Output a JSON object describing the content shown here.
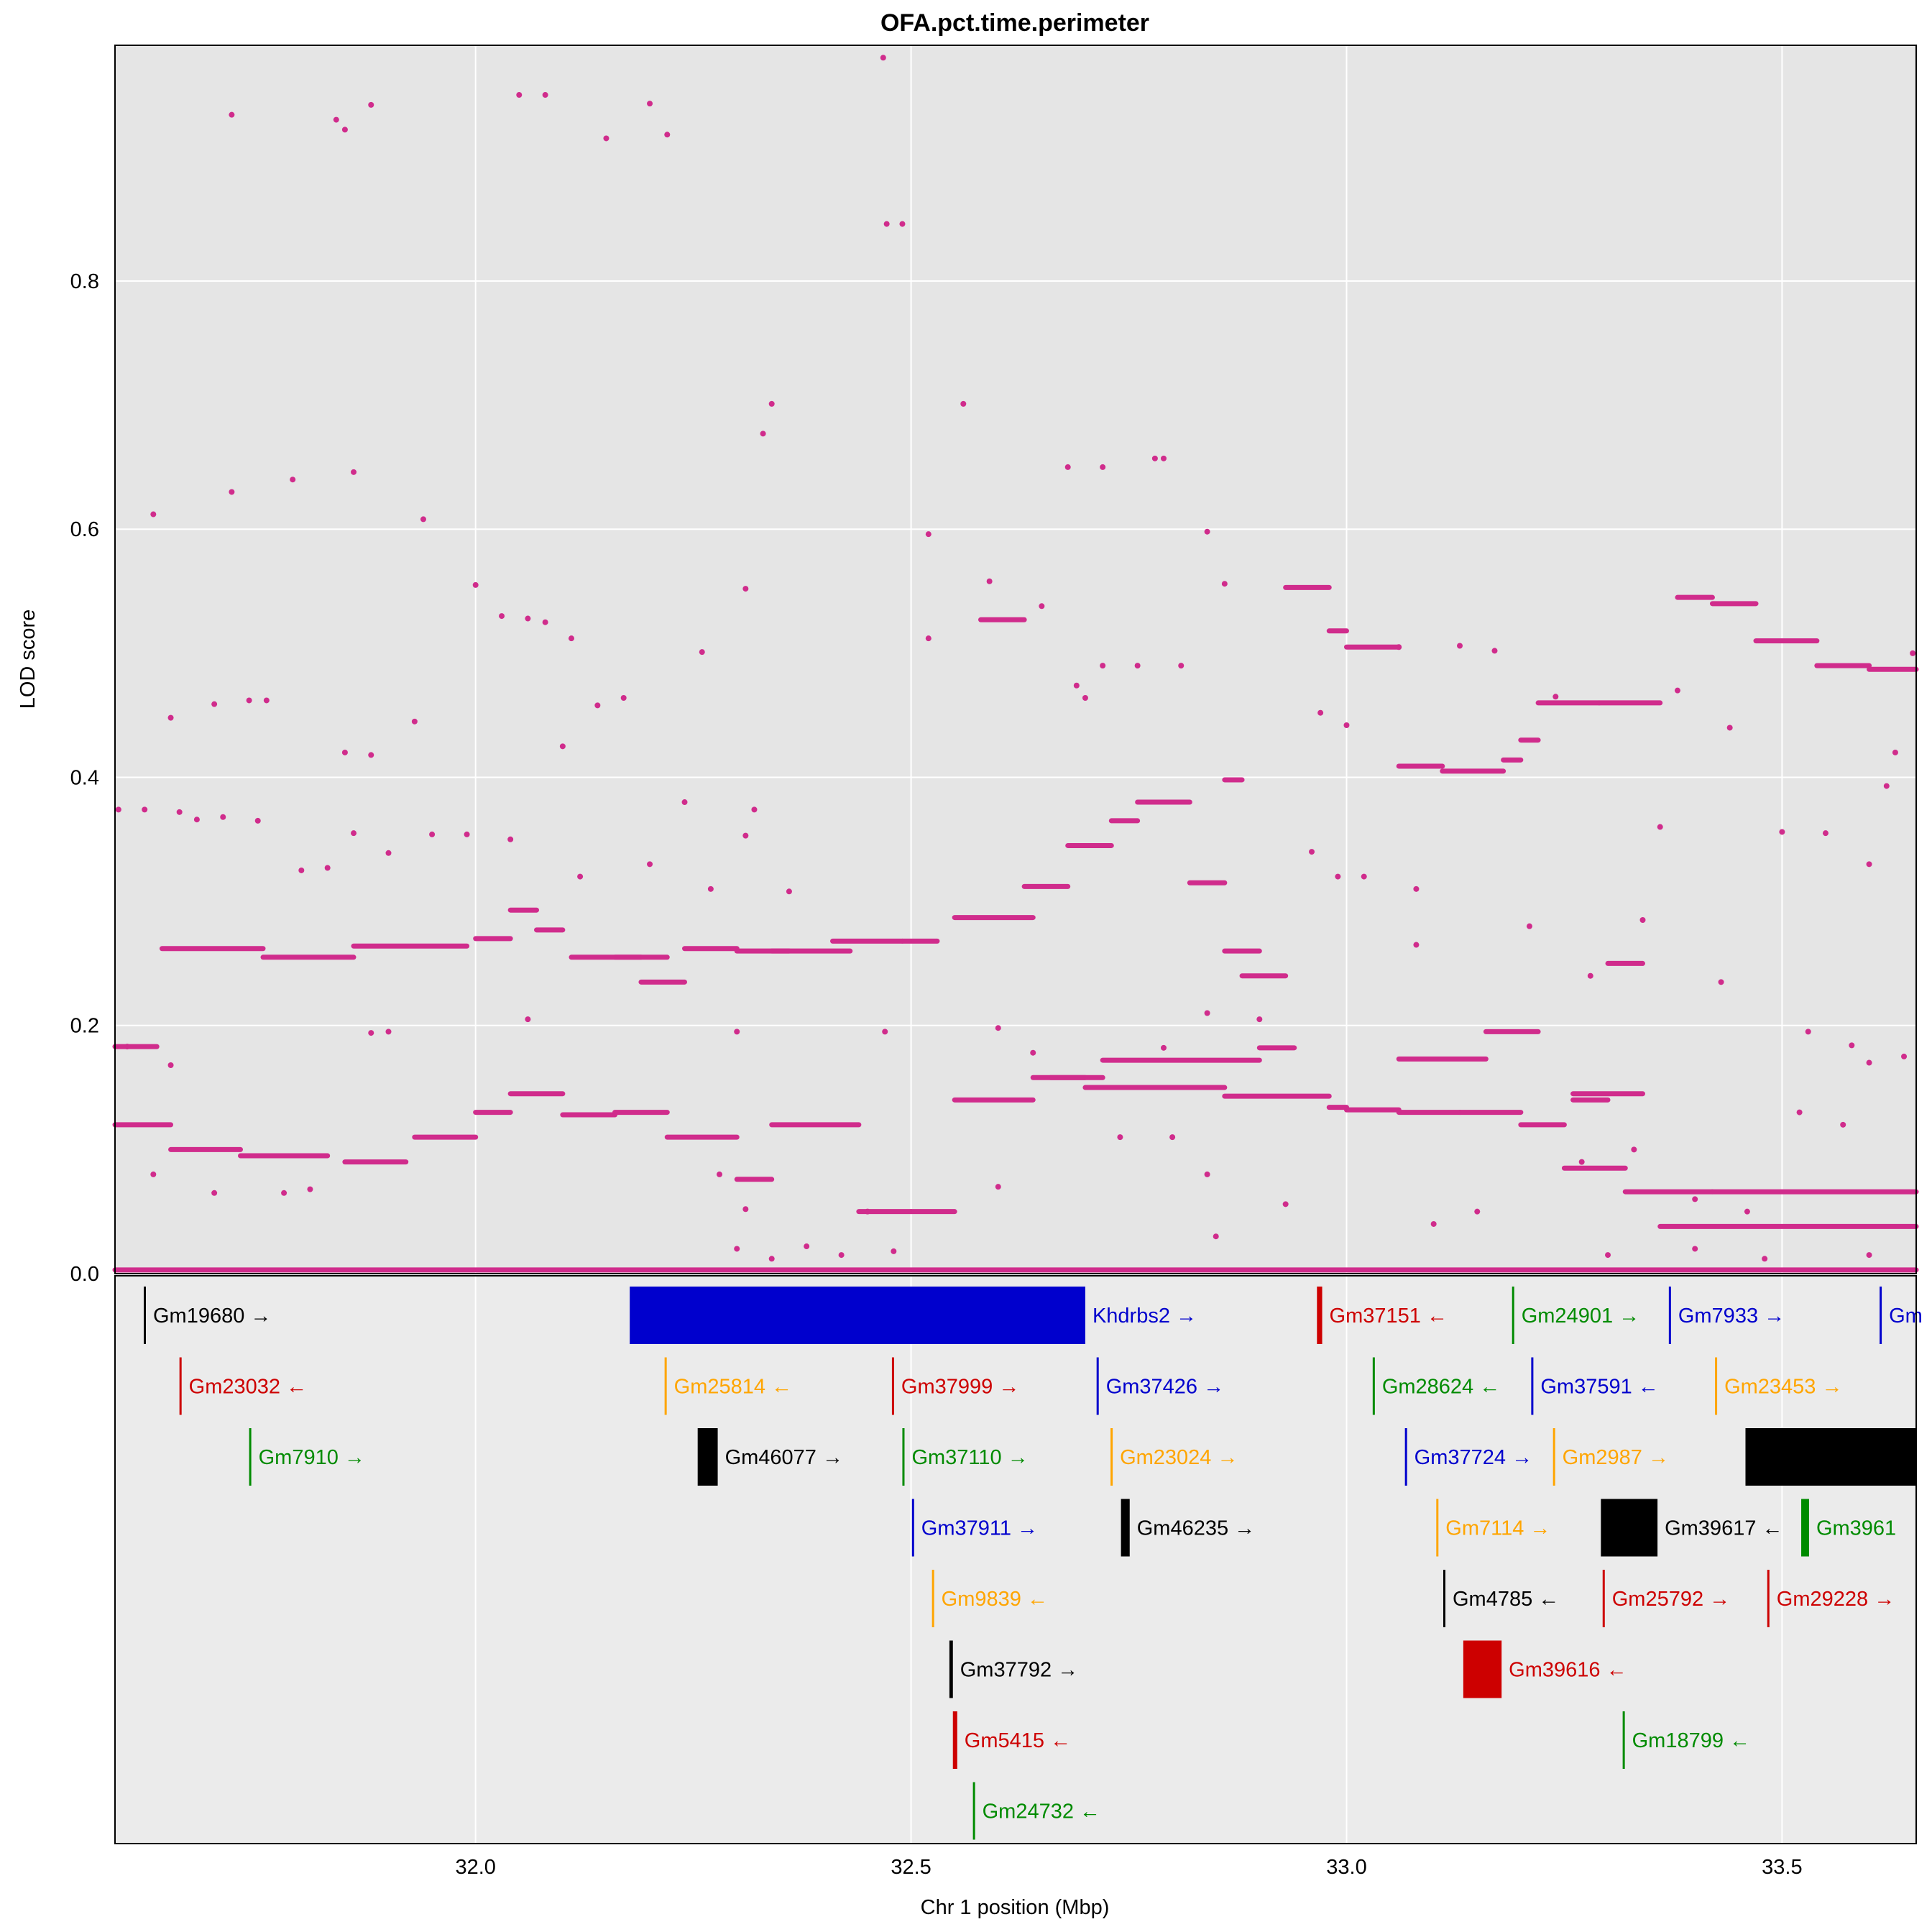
{
  "chart_data": {
    "type": "scatter",
    "title": "OFA.pct.time.perimeter",
    "xlabel": "Chr 1 position (Mbp)",
    "ylabel": "LOD score",
    "xlim": [
      31.586,
      33.654
    ],
    "ylim": [
      0.0,
      0.99
    ],
    "x_ticks": [
      {
        "value": 32.0,
        "label": "32.0"
      },
      {
        "value": 32.5,
        "label": "32.5"
      },
      {
        "value": 33.0,
        "label": "33.0"
      },
      {
        "value": 33.5,
        "label": "33.5"
      }
    ],
    "y_ticks": [
      {
        "value": 0.0,
        "label": "0.0"
      },
      {
        "value": 0.2,
        "label": "0.2"
      },
      {
        "value": 0.4,
        "label": "0.4"
      },
      {
        "value": 0.6,
        "label": "0.6"
      },
      {
        "value": 0.8,
        "label": "0.8"
      }
    ],
    "grid": true,
    "point_color": "#d02c8c",
    "panel_background": "#e5e5e5",
    "gene_panel_background": "#ebebeb",
    "scatter_points": [
      [
        31.72,
        0.934
      ],
      [
        31.84,
        0.93
      ],
      [
        31.85,
        0.922
      ],
      [
        31.88,
        0.942
      ],
      [
        32.05,
        0.95
      ],
      [
        32.08,
        0.95
      ],
      [
        32.15,
        0.915
      ],
      [
        32.2,
        0.943
      ],
      [
        32.22,
        0.918
      ],
      [
        32.468,
        0.98
      ],
      [
        32.472,
        0.846
      ],
      [
        32.49,
        0.846
      ],
      [
        32.34,
        0.701
      ],
      [
        32.33,
        0.677
      ],
      [
        32.56,
        0.701
      ],
      [
        31.63,
        0.612
      ],
      [
        31.72,
        0.63
      ],
      [
        31.79,
        0.64
      ],
      [
        31.86,
        0.646
      ],
      [
        31.94,
        0.608
      ],
      [
        32.31,
        0.552
      ],
      [
        32.52,
        0.596
      ],
      [
        32.68,
        0.65
      ],
      [
        32.72,
        0.65
      ],
      [
        32.78,
        0.657
      ],
      [
        32.79,
        0.657
      ],
      [
        32.84,
        0.598
      ],
      [
        32.86,
        0.556
      ],
      [
        32.0,
        0.555
      ],
      [
        32.03,
        0.53
      ],
      [
        32.06,
        0.528
      ],
      [
        32.08,
        0.525
      ],
      [
        32.11,
        0.512
      ],
      [
        32.26,
        0.501
      ],
      [
        32.52,
        0.512
      ],
      [
        32.59,
        0.558
      ],
      [
        32.65,
        0.538
      ],
      [
        31.65,
        0.448
      ],
      [
        31.7,
        0.459
      ],
      [
        31.74,
        0.462
      ],
      [
        31.76,
        0.462
      ],
      [
        31.85,
        0.42
      ],
      [
        31.88,
        0.418
      ],
      [
        31.93,
        0.445
      ],
      [
        32.1,
        0.425
      ],
      [
        32.14,
        0.458
      ],
      [
        32.17,
        0.464
      ],
      [
        32.24,
        0.38
      ],
      [
        32.32,
        0.374
      ],
      [
        32.69,
        0.474
      ],
      [
        32.7,
        0.464
      ],
      [
        32.72,
        0.49
      ],
      [
        32.76,
        0.49
      ],
      [
        32.81,
        0.49
      ],
      [
        32.97,
        0.452
      ],
      [
        33.0,
        0.442
      ],
      [
        33.06,
        0.505
      ],
      [
        33.13,
        0.506
      ],
      [
        33.17,
        0.502
      ],
      [
        33.24,
        0.465
      ],
      [
        33.38,
        0.47
      ],
      [
        33.44,
        0.44
      ],
      [
        33.62,
        0.393
      ],
      [
        33.63,
        0.42
      ],
      [
        33.65,
        0.5
      ],
      [
        31.59,
        0.374
      ],
      [
        31.62,
        0.374
      ],
      [
        31.66,
        0.372
      ],
      [
        31.68,
        0.366
      ],
      [
        31.71,
        0.368
      ],
      [
        31.75,
        0.365
      ],
      [
        31.8,
        0.325
      ],
      [
        31.83,
        0.327
      ],
      [
        31.86,
        0.355
      ],
      [
        31.9,
        0.339
      ],
      [
        31.95,
        0.354
      ],
      [
        31.99,
        0.354
      ],
      [
        32.04,
        0.35
      ],
      [
        32.12,
        0.32
      ],
      [
        32.2,
        0.33
      ],
      [
        32.27,
        0.31
      ],
      [
        32.31,
        0.353
      ],
      [
        32.36,
        0.308
      ],
      [
        32.96,
        0.34
      ],
      [
        32.99,
        0.32
      ],
      [
        33.02,
        0.32
      ],
      [
        33.08,
        0.31
      ],
      [
        33.21,
        0.28
      ],
      [
        33.36,
        0.36
      ],
      [
        33.5,
        0.356
      ],
      [
        33.55,
        0.355
      ],
      [
        33.6,
        0.33
      ],
      [
        31.6,
        0.183
      ],
      [
        31.65,
        0.168
      ],
      [
        31.88,
        0.194
      ],
      [
        31.9,
        0.195
      ],
      [
        32.06,
        0.205
      ],
      [
        32.3,
        0.195
      ],
      [
        32.47,
        0.195
      ],
      [
        32.6,
        0.198
      ],
      [
        32.64,
        0.178
      ],
      [
        32.79,
        0.182
      ],
      [
        32.84,
        0.21
      ],
      [
        32.9,
        0.205
      ],
      [
        33.08,
        0.265
      ],
      [
        33.28,
        0.24
      ],
      [
        33.34,
        0.285
      ],
      [
        33.43,
        0.235
      ],
      [
        33.53,
        0.195
      ],
      [
        33.58,
        0.184
      ],
      [
        33.6,
        0.17
      ],
      [
        33.64,
        0.175
      ],
      [
        31.63,
        0.08
      ],
      [
        31.7,
        0.065
      ],
      [
        31.78,
        0.065
      ],
      [
        31.81,
        0.068
      ],
      [
        32.28,
        0.08
      ],
      [
        32.31,
        0.052
      ],
      [
        32.45,
        0.05
      ],
      [
        32.6,
        0.07
      ],
      [
        32.74,
        0.11
      ],
      [
        32.8,
        0.11
      ],
      [
        32.84,
        0.08
      ],
      [
        32.93,
        0.056
      ],
      [
        33.1,
        0.04
      ],
      [
        33.15,
        0.05
      ],
      [
        33.27,
        0.09
      ],
      [
        33.33,
        0.1
      ],
      [
        33.4,
        0.06
      ],
      [
        33.46,
        0.05
      ],
      [
        33.52,
        0.13
      ],
      [
        33.57,
        0.12
      ],
      [
        32.3,
        0.02
      ],
      [
        32.34,
        0.012
      ],
      [
        32.38,
        0.022
      ],
      [
        32.42,
        0.015
      ],
      [
        32.48,
        0.018
      ],
      [
        32.85,
        0.03
      ],
      [
        33.3,
        0.015
      ],
      [
        33.4,
        0.02
      ],
      [
        33.48,
        0.012
      ],
      [
        33.6,
        0.015
      ]
    ],
    "scatter_segments": [
      [
        31.586,
        31.634,
        0.183
      ],
      [
        31.64,
        31.756,
        0.262
      ],
      [
        31.756,
        31.86,
        0.255
      ],
      [
        31.86,
        31.99,
        0.264
      ],
      [
        32.0,
        32.04,
        0.27
      ],
      [
        32.04,
        32.07,
        0.293
      ],
      [
        32.07,
        32.1,
        0.277
      ],
      [
        32.11,
        32.19,
        0.255
      ],
      [
        32.19,
        32.24,
        0.235
      ],
      [
        32.24,
        32.3,
        0.262
      ],
      [
        32.3,
        32.36,
        0.26
      ],
      [
        32.41,
        32.49,
        0.268
      ],
      [
        32.49,
        32.53,
        0.268
      ],
      [
        32.55,
        32.64,
        0.287
      ],
      [
        32.63,
        32.68,
        0.312
      ],
      [
        32.68,
        32.73,
        0.345
      ],
      [
        32.73,
        32.76,
        0.365
      ],
      [
        32.76,
        32.82,
        0.38
      ],
      [
        32.82,
        32.86,
        0.315
      ],
      [
        32.86,
        32.88,
        0.398
      ],
      [
        32.93,
        32.98,
        0.553
      ],
      [
        32.98,
        33.0,
        0.518
      ],
      [
        33.0,
        33.06,
        0.505
      ],
      [
        33.06,
        33.11,
        0.409
      ],
      [
        33.11,
        33.18,
        0.405
      ],
      [
        33.18,
        33.2,
        0.414
      ],
      [
        33.2,
        33.22,
        0.43
      ],
      [
        33.22,
        33.29,
        0.46
      ],
      [
        33.29,
        33.36,
        0.46
      ],
      [
        33.38,
        33.42,
        0.545
      ],
      [
        33.42,
        33.47,
        0.54
      ],
      [
        33.47,
        33.54,
        0.51
      ],
      [
        33.54,
        33.6,
        0.49
      ],
      [
        33.6,
        33.654,
        0.487
      ],
      [
        32.34,
        32.43,
        0.26
      ],
      [
        32.16,
        32.22,
        0.255
      ],
      [
        32.58,
        32.63,
        0.527
      ],
      [
        32.66,
        32.7,
        0.158
      ],
      [
        32.7,
        32.86,
        0.15
      ],
      [
        32.86,
        32.98,
        0.143
      ],
      [
        32.98,
        33.0,
        0.134
      ],
      [
        33.0,
        33.06,
        0.132
      ],
      [
        33.06,
        33.13,
        0.13
      ],
      [
        33.13,
        33.2,
        0.13
      ],
      [
        33.2,
        33.25,
        0.12
      ],
      [
        33.25,
        33.32,
        0.085
      ],
      [
        33.32,
        33.42,
        0.066
      ],
      [
        33.42,
        33.654,
        0.066
      ],
      [
        33.36,
        33.654,
        0.038
      ],
      [
        31.586,
        31.65,
        0.12
      ],
      [
        31.65,
        31.73,
        0.1
      ],
      [
        31.73,
        31.83,
        0.095
      ],
      [
        31.85,
        31.92,
        0.09
      ],
      [
        31.93,
        32.0,
        0.11
      ],
      [
        32.0,
        32.04,
        0.13
      ],
      [
        32.04,
        32.1,
        0.145
      ],
      [
        32.1,
        32.16,
        0.128
      ],
      [
        32.16,
        32.22,
        0.13
      ],
      [
        32.22,
        32.3,
        0.11
      ],
      [
        32.3,
        32.34,
        0.076
      ],
      [
        32.34,
        32.44,
        0.12
      ],
      [
        32.44,
        32.5,
        0.05
      ],
      [
        32.5,
        32.55,
        0.05
      ],
      [
        32.55,
        32.64,
        0.14
      ],
      [
        32.64,
        32.72,
        0.158
      ],
      [
        32.72,
        32.9,
        0.172
      ],
      [
        32.9,
        32.94,
        0.182
      ],
      [
        33.06,
        33.16,
        0.173
      ],
      [
        33.16,
        33.22,
        0.195
      ],
      [
        32.86,
        32.9,
        0.26
      ],
      [
        32.88,
        32.93,
        0.24
      ],
      [
        33.3,
        33.34,
        0.25
      ],
      [
        33.26,
        33.3,
        0.14
      ],
      [
        33.26,
        33.34,
        0.145
      ],
      [
        31.586,
        33.654,
        0.003
      ]
    ]
  },
  "genes": [
    {
      "label": "Gm19680 →",
      "start": 31.619,
      "end": 31.62,
      "row": 0,
      "color": "#000000"
    },
    {
      "label": "Khdrbs2 →",
      "start": 32.177,
      "end": 32.7,
      "row": 0,
      "color": "#0000cd"
    },
    {
      "label": "Gm37151 ←",
      "start": 32.966,
      "end": 32.972,
      "row": 0,
      "color": "#cd0000"
    },
    {
      "label": "Gm24901 →",
      "start": 33.19,
      "end": 33.191,
      "row": 0,
      "color": "#008b00"
    },
    {
      "label": "Gm7933 →",
      "start": 33.37,
      "end": 33.372,
      "row": 0,
      "color": "#0000cd"
    },
    {
      "label": "Gm",
      "start": 33.612,
      "end": 33.614,
      "row": 0,
      "color": "#0000cd"
    },
    {
      "label": "Gm23032 ←",
      "start": 31.66,
      "end": 31.661,
      "row": 1,
      "color": "#cd0000"
    },
    {
      "label": "Gm25814 ←",
      "start": 32.217,
      "end": 32.218,
      "row": 1,
      "color": "#ffa500"
    },
    {
      "label": "Gm37999 →",
      "start": 32.478,
      "end": 32.48,
      "row": 1,
      "color": "#cd0000"
    },
    {
      "label": "Gm37426 →",
      "start": 32.713,
      "end": 32.715,
      "row": 1,
      "color": "#0000cd"
    },
    {
      "label": "Gm28624 ←",
      "start": 33.03,
      "end": 33.032,
      "row": 1,
      "color": "#008b00"
    },
    {
      "label": "Gm37591 ←",
      "start": 33.212,
      "end": 33.214,
      "row": 1,
      "color": "#0000cd"
    },
    {
      "label": "Gm23453 →",
      "start": 33.423,
      "end": 33.424,
      "row": 1,
      "color": "#ffa500"
    },
    {
      "label": "Gm7910 →",
      "start": 31.74,
      "end": 31.741,
      "row": 2,
      "color": "#008b00"
    },
    {
      "label": "Gm46077 →",
      "start": 32.255,
      "end": 32.278,
      "row": 2,
      "color": "#000000"
    },
    {
      "label": "Gm37110 →",
      "start": 32.49,
      "end": 32.492,
      "row": 2,
      "color": "#008b00"
    },
    {
      "label": "Gm23024 →",
      "start": 32.729,
      "end": 32.73,
      "row": 2,
      "color": "#ffa500"
    },
    {
      "label": "Gm37724 →",
      "start": 33.067,
      "end": 33.069,
      "row": 2,
      "color": "#0000cd"
    },
    {
      "label": "Gm2987 →",
      "start": 33.237,
      "end": 33.239,
      "row": 2,
      "color": "#ffa500"
    },
    {
      "label": "",
      "start": 33.458,
      "end": 33.654,
      "row": 2,
      "color": "#000000"
    },
    {
      "label": "Gm37911 →",
      "start": 32.501,
      "end": 32.503,
      "row": 3,
      "color": "#0000cd"
    },
    {
      "label": "Gm46235 →",
      "start": 32.741,
      "end": 32.751,
      "row": 3,
      "color": "#000000"
    },
    {
      "label": "Gm7114 →",
      "start": 33.103,
      "end": 33.104,
      "row": 3,
      "color": "#ffa500"
    },
    {
      "label": "Gm39617 ←",
      "start": 33.292,
      "end": 33.357,
      "row": 3,
      "color": "#000000"
    },
    {
      "label": "Gm3961",
      "start": 33.522,
      "end": 33.531,
      "row": 3,
      "color": "#008b00"
    },
    {
      "label": "Gm9839 ←",
      "start": 32.524,
      "end": 32.525,
      "row": 4,
      "color": "#ffa500"
    },
    {
      "label": "Gm4785 ←",
      "start": 33.111,
      "end": 33.112,
      "row": 4,
      "color": "#000000"
    },
    {
      "label": "Gm25792 →",
      "start": 33.294,
      "end": 33.296,
      "row": 4,
      "color": "#cd0000"
    },
    {
      "label": "Gm29228 →",
      "start": 33.483,
      "end": 33.485,
      "row": 4,
      "color": "#cd0000"
    },
    {
      "label": "Gm37792 →",
      "start": 32.544,
      "end": 32.548,
      "row": 5,
      "color": "#000000"
    },
    {
      "label": "Gm39616 ←",
      "start": 33.134,
      "end": 33.178,
      "row": 5,
      "color": "#cd0000"
    },
    {
      "label": "Gm5415 ←",
      "start": 32.548,
      "end": 32.553,
      "row": 6,
      "color": "#cd0000"
    },
    {
      "label": "Gm18799 ←",
      "start": 33.317,
      "end": 33.319,
      "row": 6,
      "color": "#008b00"
    },
    {
      "label": "Gm24732 ←",
      "start": 32.571,
      "end": 32.572,
      "row": 7,
      "color": "#008b00"
    }
  ]
}
